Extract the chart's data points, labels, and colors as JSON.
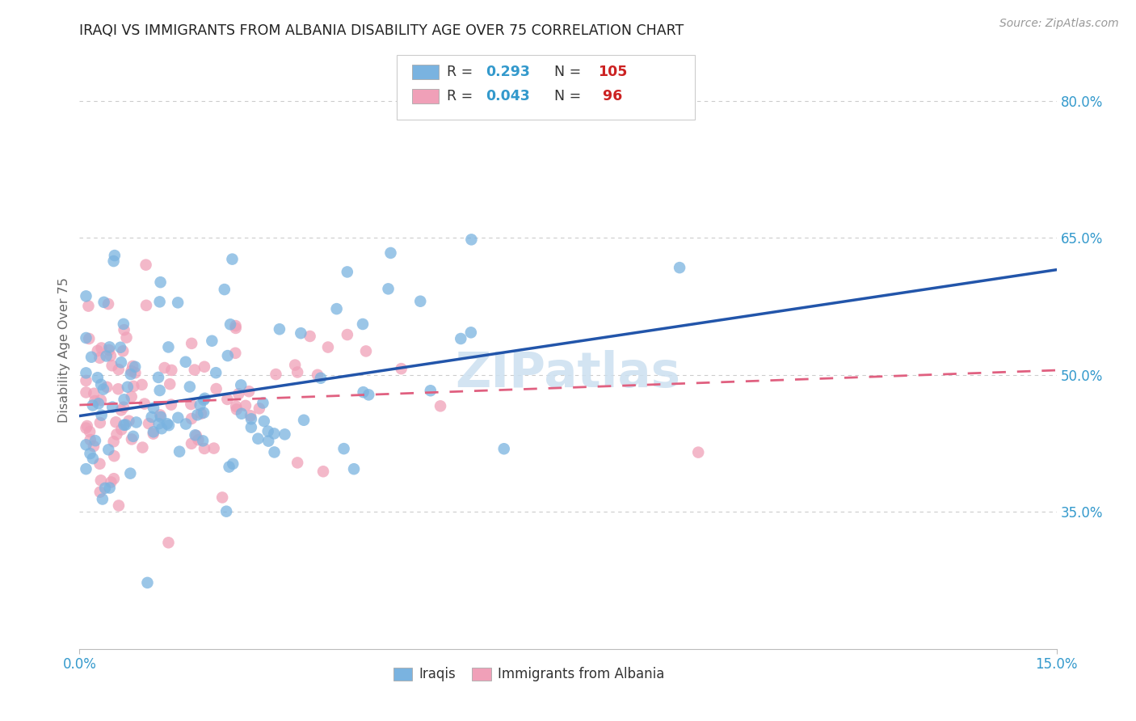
{
  "title": "IRAQI VS IMMIGRANTS FROM ALBANIA DISABILITY AGE OVER 75 CORRELATION CHART",
  "source": "Source: ZipAtlas.com",
  "ylabel": "Disability Age Over 75",
  "xlim": [
    0.0,
    0.15
  ],
  "ylim": [
    0.2,
    0.855
  ],
  "yticks": [
    0.35,
    0.5,
    0.65,
    0.8
  ],
  "ytick_labels": [
    "35.0%",
    "50.0%",
    "65.0%",
    "80.0%"
  ],
  "xticks": [
    0.0,
    0.15
  ],
  "xtick_labels": [
    "0.0%",
    "15.0%"
  ],
  "iraqi_color": "#7ab3e0",
  "albania_color": "#f0a0b8",
  "iraqi_line_color": "#2255aa",
  "albania_line_color": "#e06080",
  "background_color": "#ffffff",
  "grid_color": "#cccccc",
  "title_color": "#222222",
  "tick_label_color": "#3399cc",
  "ylabel_color": "#666666",
  "source_color": "#999999",
  "legend_r_label_color": "#333333",
  "legend_r_value_color": "#3399cc",
  "legend_n_label_color": "#333333",
  "legend_n_value_color": "#cc2222",
  "watermark_color": "#cce0f0",
  "iraqi_R": 0.293,
  "iraqi_N": 105,
  "albania_R": 0.043,
  "albania_N": 96,
  "iraqi_line_x0": 0.0,
  "iraqi_line_x1": 0.15,
  "iraqi_line_y0": 0.455,
  "iraqi_line_y1": 0.615,
  "albania_line_x0": 0.0,
  "albania_line_x1": 0.15,
  "albania_line_y0": 0.467,
  "albania_line_y1": 0.505
}
